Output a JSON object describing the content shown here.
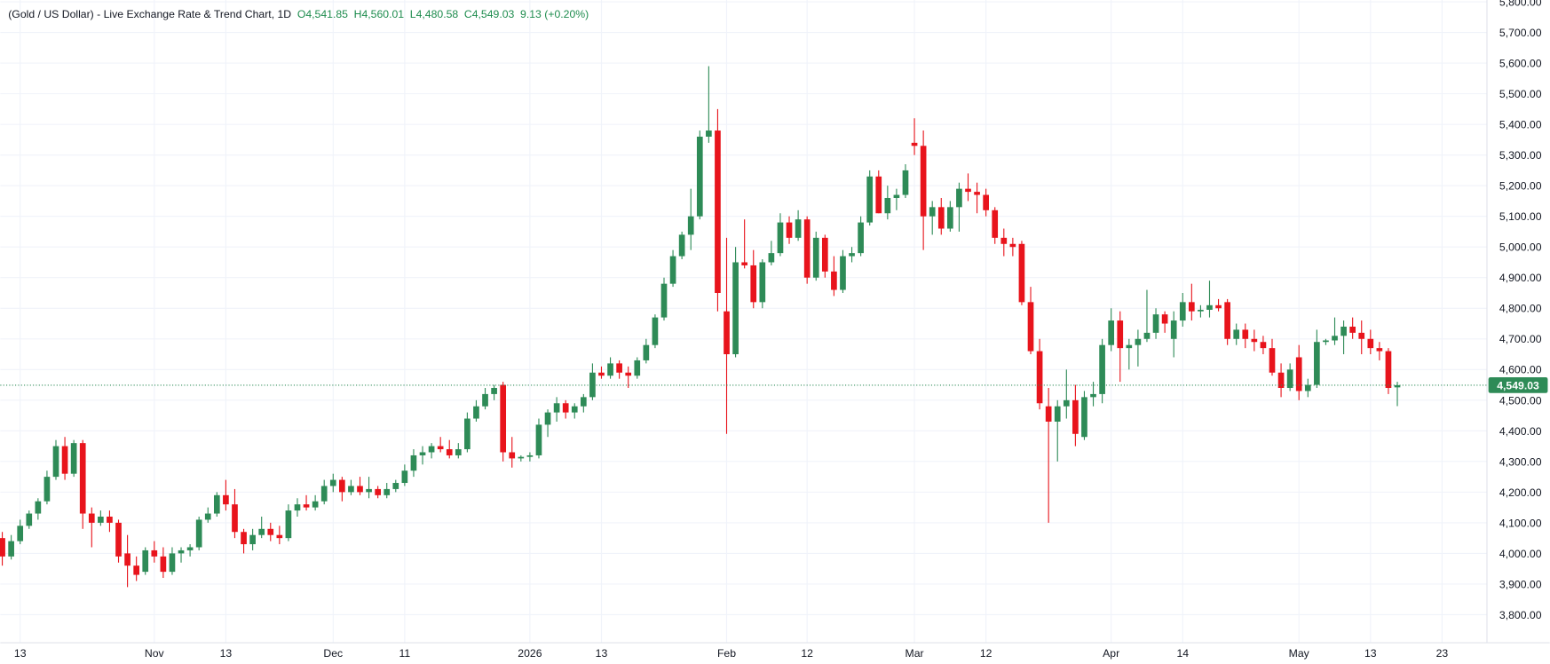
{
  "chart_data": {
    "type": "candlestick",
    "title": "(Gold / US Dollar) - Live Exchange Rate & Trend Chart, 1D",
    "header_values": [
      "O4,541.85",
      "H4,560.01",
      "L4,480.58",
      "C4,549.03",
      "9.13 (+0.20%)"
    ],
    "categories": [
      null,
      null,
      "13",
      null,
      null,
      null,
      null,
      null,
      null,
      null,
      null,
      null,
      null,
      null,
      null,
      null,
      null,
      "Nov",
      null,
      null,
      null,
      null,
      null,
      null,
      null,
      "13",
      null,
      null,
      null,
      null,
      null,
      null,
      null,
      null,
      null,
      null,
      null,
      "Dec",
      null,
      null,
      null,
      null,
      null,
      null,
      null,
      "11",
      null,
      null,
      null,
      null,
      null,
      null,
      null,
      null,
      null,
      null,
      null,
      null,
      null,
      "2026",
      null,
      null,
      null,
      null,
      null,
      null,
      null,
      "13",
      null,
      null,
      null,
      null,
      null,
      null,
      null,
      null,
      null,
      null,
      null,
      null,
      null,
      "Feb",
      null,
      null,
      null,
      null,
      null,
      null,
      null,
      null,
      "12",
      null,
      null,
      null,
      null,
      null,
      null,
      null,
      null,
      null,
      null,
      null,
      "Mar",
      null,
      null,
      null,
      null,
      null,
      null,
      null,
      "12",
      null,
      null,
      null,
      null,
      null,
      null,
      null,
      null,
      null,
      null,
      null,
      null,
      null,
      "Apr",
      null,
      null,
      null,
      null,
      null,
      null,
      null,
      "14",
      null,
      null,
      null,
      null,
      null,
      null,
      null,
      null,
      null,
      null,
      null,
      null,
      "May",
      null,
      null,
      null,
      null,
      null,
      null,
      null,
      "13",
      null,
      null,
      null,
      null,
      null,
      null,
      null,
      "23"
    ],
    "open": [
      4050,
      3990,
      4040,
      4090,
      4130,
      4170,
      4250,
      4350,
      4260,
      4360,
      4130,
      4100,
      4120,
      4100,
      4000,
      3960,
      3940,
      4010,
      3990,
      3940,
      4000,
      4010,
      4020,
      4110,
      4130,
      4190,
      4160,
      4070,
      4030,
      4060,
      4080,
      4060,
      4050,
      4140,
      4160,
      4150,
      4170,
      4220,
      4240,
      4200,
      4220,
      4200,
      4210,
      4190,
      4210,
      4230,
      4270,
      4320,
      4330,
      4350,
      4340,
      4320,
      4340,
      4440,
      4480,
      4520,
      4550,
      4330,
      4310,
      4315,
      4320,
      4420,
      4460,
      4490,
      4460,
      4480,
      4510,
      4590,
      4580,
      4620,
      4590,
      4580,
      4630,
      4680,
      4770,
      4880,
      4970,
      5040,
      5100,
      5360,
      5380,
      4790,
      4650,
      4950,
      4940,
      4820,
      4950,
      4980,
      5080,
      5030,
      5090,
      4900,
      5030,
      4920,
      4860,
      4970,
      4980,
      5080,
      5230,
      5110,
      5160,
      5170,
      5340,
      5330,
      5100,
      5130,
      5060,
      5130,
      5190,
      5180,
      5170,
      5120,
      5030,
      5010,
      5010,
      4820,
      4660,
      4480,
      4430,
      4480,
      4500,
      4380,
      4510,
      4520,
      4680,
      4760,
      4670,
      4680,
      4700,
      4720,
      4780,
      4700,
      4760,
      4820,
      4790,
      4795,
      4810,
      4820,
      4700,
      4730,
      4700,
      4690,
      4670,
      4590,
      4540,
      4640,
      4530,
      4550,
      4690,
      4695,
      4710,
      4740,
      4720,
      4700,
      4670,
      4660,
      4541.85,
      null,
      null,
      null,
      null,
      null
    ],
    "high": [
      4070,
      4060,
      4110,
      4140,
      4180,
      4270,
      4370,
      4380,
      4370,
      4370,
      4150,
      4140,
      4140,
      4110,
      4060,
      3990,
      4020,
      4040,
      4020,
      4020,
      4020,
      4030,
      4120,
      4150,
      4200,
      4240,
      4210,
      4080,
      4080,
      4120,
      4100,
      4090,
      4160,
      4180,
      4190,
      4190,
      4240,
      4260,
      4250,
      4240,
      4250,
      4250,
      4220,
      4230,
      4240,
      4290,
      4340,
      4350,
      4360,
      4380,
      4370,
      4360,
      4460,
      4500,
      4540,
      4550,
      4560,
      4380,
      4320,
      4330,
      4440,
      4470,
      4510,
      4500,
      4490,
      4520,
      4620,
      4610,
      4640,
      4630,
      4610,
      4640,
      4700,
      4780,
      4900,
      4990,
      5050,
      5190,
      5380,
      5590,
      5450,
      5030,
      5000,
      5090,
      4990,
      4960,
      5020,
      5110,
      5100,
      5120,
      5100,
      5050,
      5040,
      4970,
      4990,
      5000,
      5100,
      5250,
      5250,
      5200,
      5190,
      5270,
      5420,
      5380,
      5150,
      5160,
      5150,
      5210,
      5240,
      5210,
      5190,
      5130,
      5060,
      5030,
      5020,
      4870,
      4700,
      4540,
      4500,
      4600,
      4550,
      4530,
      4560,
      4700,
      4800,
      4790,
      4700,
      4730,
      4860,
      4800,
      4790,
      4790,
      4850,
      4880,
      4810,
      4890,
      4830,
      4830,
      4750,
      4750,
      4730,
      4710,
      4700,
      4620,
      4620,
      4680,
      4570,
      4730,
      4700,
      4770,
      4760,
      4770,
      4760,
      4730,
      4690,
      4670,
      4560.01,
      null,
      null,
      null,
      null,
      null
    ],
    "low": [
      3960,
      3980,
      4030,
      4080,
      4110,
      4160,
      4240,
      4240,
      4250,
      4080,
      4020,
      4090,
      4070,
      3970,
      3890,
      3910,
      3930,
      3970,
      3920,
      3930,
      3970,
      3990,
      4010,
      4100,
      4120,
      4140,
      4050,
      4000,
      4010,
      4050,
      4040,
      4030,
      4040,
      4120,
      4140,
      4140,
      4160,
      4200,
      4170,
      4190,
      4190,
      4180,
      4180,
      4180,
      4200,
      4220,
      4250,
      4290,
      4310,
      4330,
      4310,
      4310,
      4330,
      4430,
      4470,
      4500,
      4300,
      4280,
      4300,
      4300,
      4310,
      4380,
      4430,
      4440,
      4440,
      4460,
      4500,
      4570,
      4570,
      4570,
      4540,
      4570,
      4620,
      4670,
      4760,
      4870,
      4960,
      4990,
      5090,
      5340,
      4790,
      4390,
      4640,
      4930,
      4800,
      4800,
      4940,
      4970,
      5010,
      5020,
      4880,
      4890,
      4900,
      4840,
      4850,
      4950,
      4970,
      5070,
      5110,
      5090,
      5120,
      5160,
      5300,
      4990,
      5040,
      5040,
      5050,
      5050,
      5150,
      5110,
      5100,
      5010,
      4970,
      4970,
      4810,
      4650,
      4470,
      4100,
      4300,
      4440,
      4350,
      4370,
      4480,
      4490,
      4660,
      4560,
      4600,
      4610,
      4690,
      4700,
      4720,
      4640,
      4740,
      4760,
      4770,
      4770,
      4790,
      4680,
      4680,
      4670,
      4660,
      4650,
      4580,
      4510,
      4530,
      4500,
      4510,
      4540,
      4680,
      4680,
      4650,
      4700,
      4650,
      4650,
      4630,
      4520,
      4480.58,
      null,
      null,
      null,
      null,
      null
    ],
    "close": [
      3990,
      4040,
      4090,
      4130,
      4170,
      4250,
      4350,
      4260,
      4360,
      4130,
      4100,
      4120,
      4100,
      3990,
      3960,
      3930,
      4010,
      3990,
      3940,
      4000,
      4010,
      4020,
      4110,
      4130,
      4190,
      4160,
      4070,
      4030,
      4060,
      4080,
      4060,
      4050,
      4140,
      4160,
      4150,
      4170,
      4220,
      4240,
      4200,
      4220,
      4200,
      4210,
      4190,
      4210,
      4230,
      4270,
      4320,
      4330,
      4350,
      4340,
      4320,
      4340,
      4440,
      4480,
      4520,
      4540,
      4330,
      4310,
      4315,
      4320,
      4420,
      4460,
      4490,
      4460,
      4480,
      4510,
      4590,
      4580,
      4620,
      4590,
      4580,
      4630,
      4680,
      4770,
      4880,
      4970,
      5040,
      5100,
      5360,
      5380,
      4850,
      4650,
      4950,
      4940,
      4820,
      4950,
      4980,
      5080,
      5030,
      5090,
      4900,
      5030,
      4920,
      4860,
      4970,
      4980,
      5080,
      5230,
      5110,
      5160,
      5170,
      5250,
      5330,
      5100,
      5130,
      5060,
      5130,
      5190,
      5180,
      5170,
      5120,
      5030,
      5010,
      5000,
      4820,
      4660,
      4490,
      4430,
      4480,
      4500,
      4390,
      4510,
      4520,
      4680,
      4760,
      4670,
      4680,
      4700,
      4720,
      4780,
      4750,
      4760,
      4820,
      4790,
      4795,
      4810,
      4800,
      4700,
      4730,
      4700,
      4690,
      4670,
      4590,
      4540,
      4600,
      4530,
      4550,
      4690,
      4695,
      4710,
      4740,
      4720,
      4700,
      4670,
      4660,
      4540,
      4549.03,
      null,
      null,
      null,
      null,
      null
    ],
    "up_color": "#2e8b57",
    "down_color": "#e8141c",
    "ylim": [
      3710,
      5806
    ],
    "yticks": [
      {
        "value": 3800,
        "label": "3,800.00"
      },
      {
        "value": 3900,
        "label": "3,900.00"
      },
      {
        "value": 4000,
        "label": "4,000.00"
      },
      {
        "value": 4100,
        "label": "4,100.00"
      },
      {
        "value": 4200,
        "label": "4,200.00"
      },
      {
        "value": 4300,
        "label": "4,300.00"
      },
      {
        "value": 4400,
        "label": "4,400.00"
      },
      {
        "value": 4500,
        "label": "4,500.00"
      },
      {
        "value": 4600,
        "label": "4,600.00"
      },
      {
        "value": 4700,
        "label": "4,700.00"
      },
      {
        "value": 4800,
        "label": "4,800.00"
      },
      {
        "value": 4900,
        "label": "4,900.00"
      },
      {
        "value": 5000,
        "label": "5,000.00"
      },
      {
        "value": 5100,
        "label": "5,100.00"
      },
      {
        "value": 5200,
        "label": "5,200.00"
      },
      {
        "value": 5300,
        "label": "5,300.00"
      },
      {
        "value": 5400,
        "label": "5,400.00"
      },
      {
        "value": 5500,
        "label": "5,500.00"
      },
      {
        "value": 5600,
        "label": "5,600.00"
      },
      {
        "value": 5700,
        "label": "5,700.00"
      },
      {
        "value": 5800,
        "label": "5,800.00"
      }
    ],
    "grid": true,
    "last_price_label": "4,549.03"
  }
}
